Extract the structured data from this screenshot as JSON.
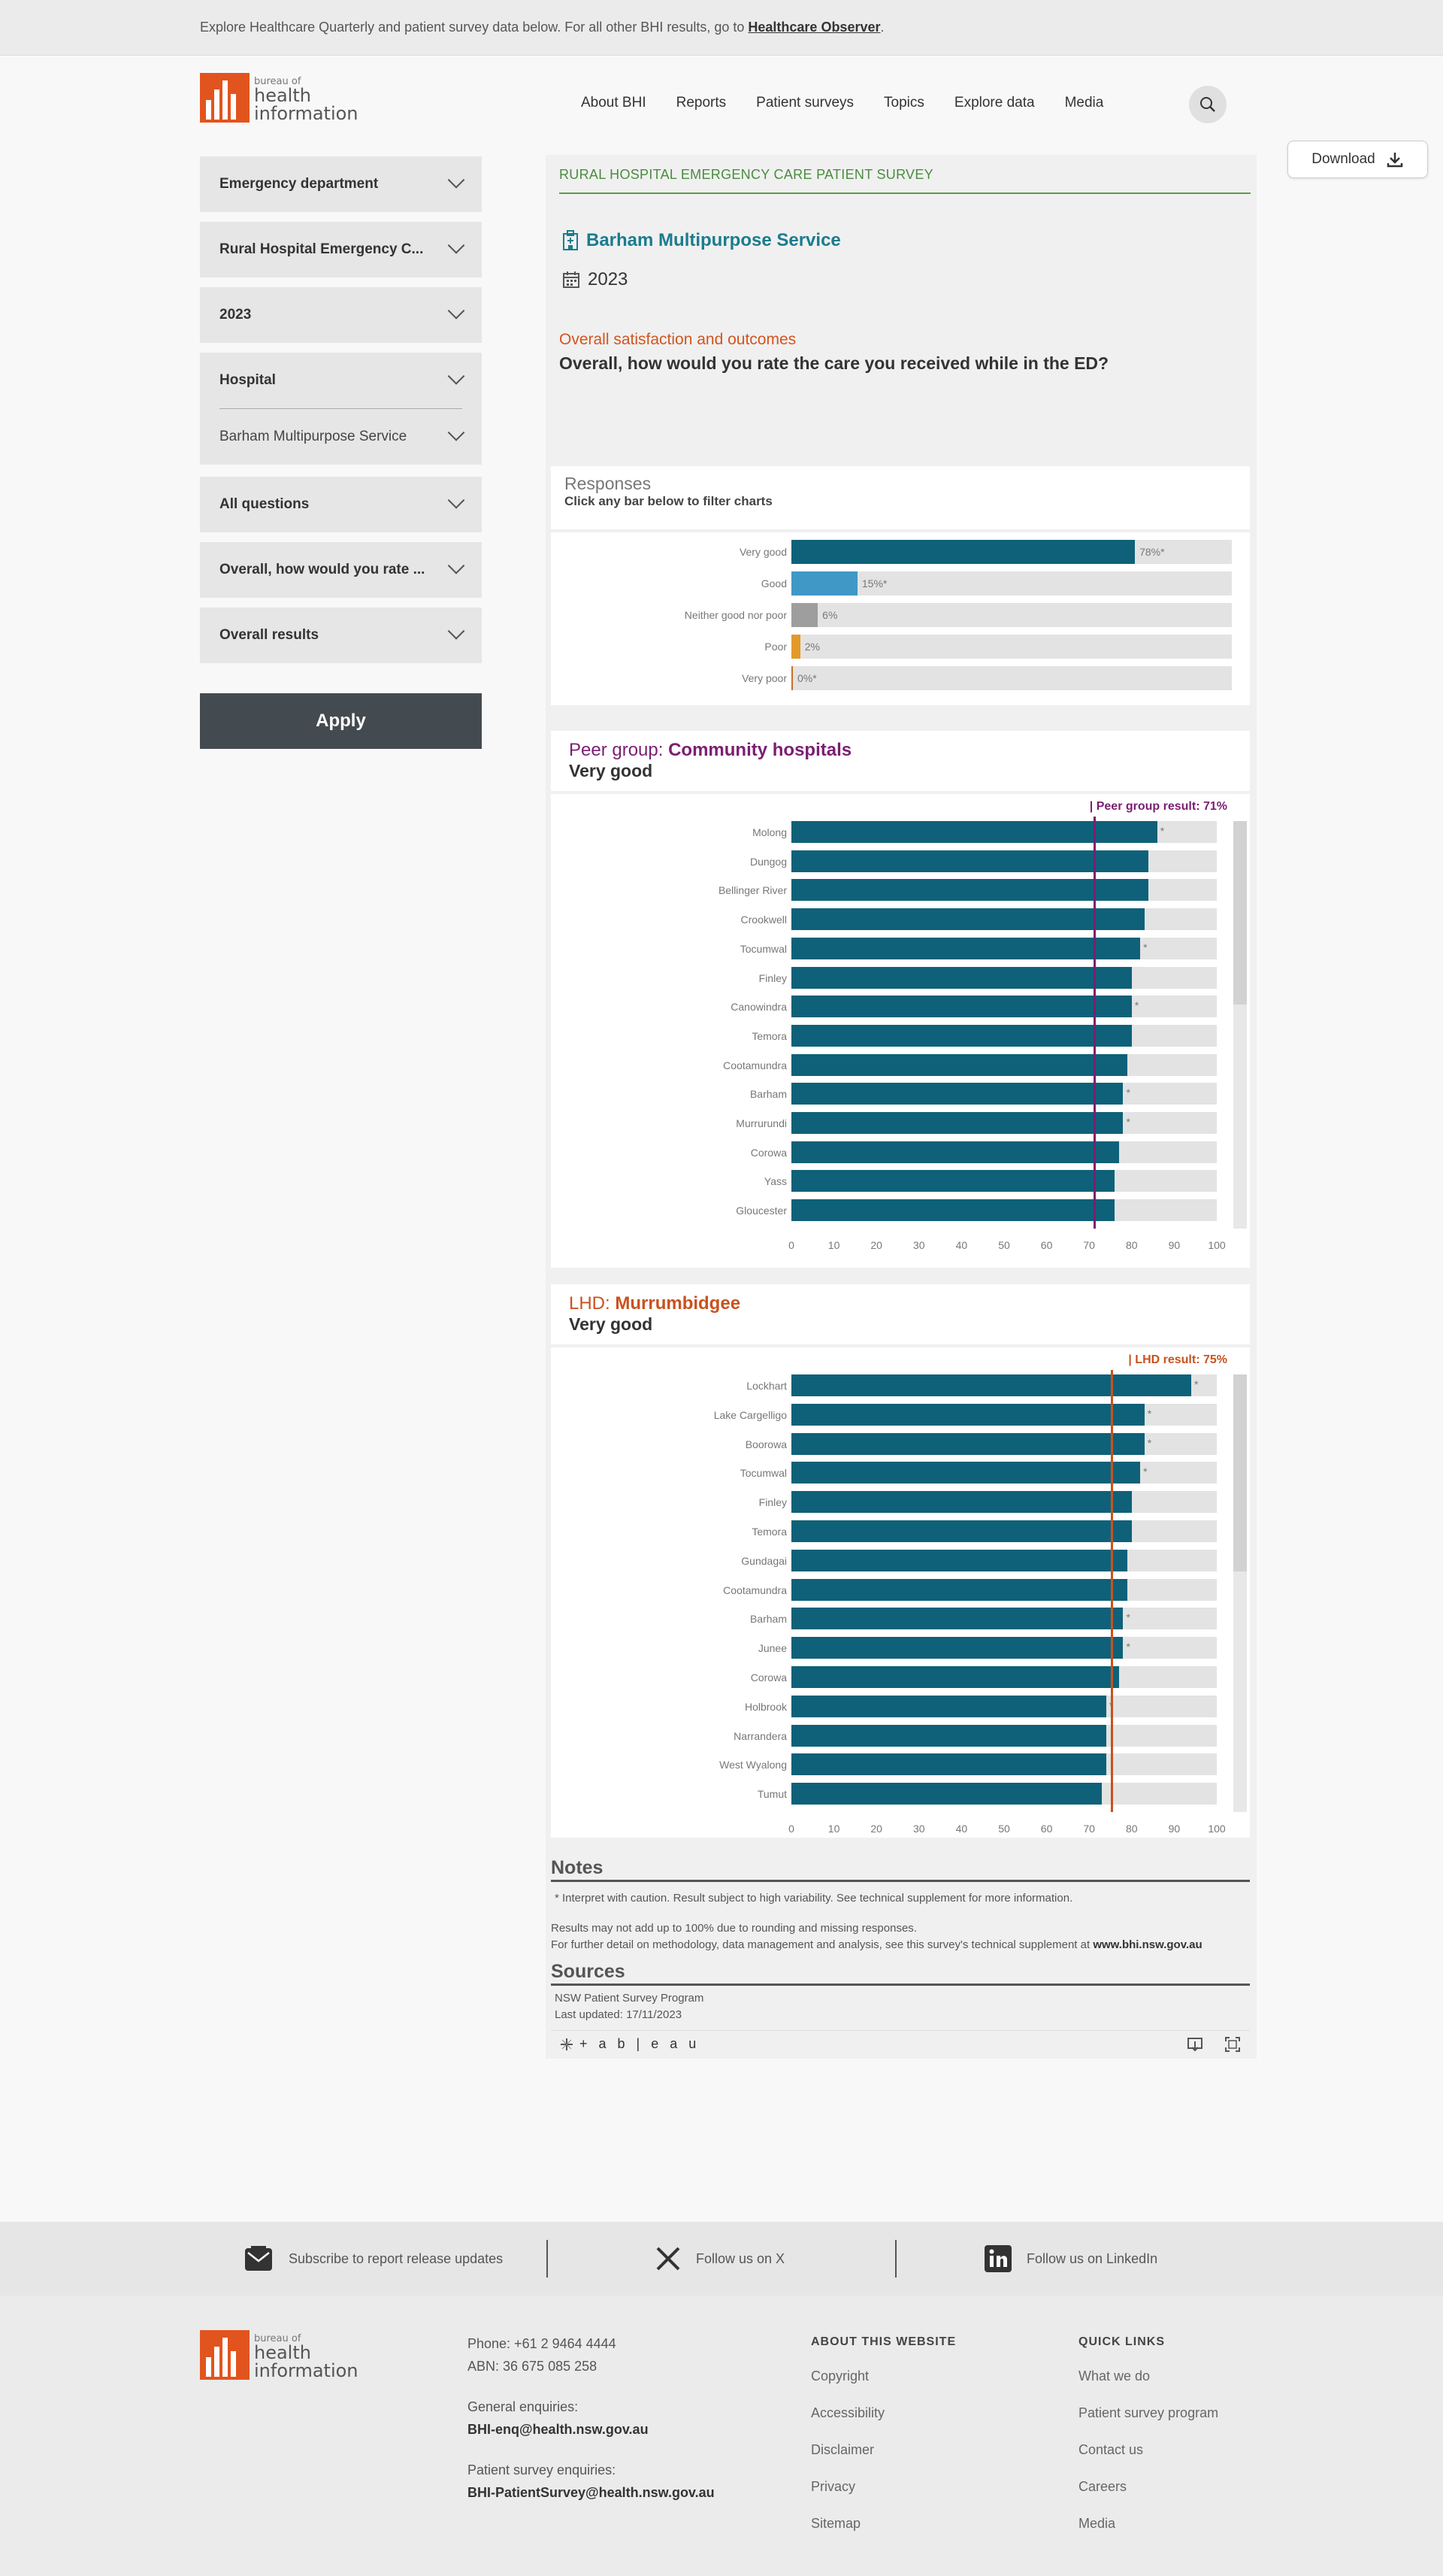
{
  "banner": {
    "text": "Explore Healthcare Quarterly and patient survey data below. For all other BHI results, go to",
    "link": "Healthcare Observer",
    "end": "."
  },
  "logo": {
    "line1": "bureau of",
    "line2": "health",
    "line3": "information"
  },
  "nav": [
    "About BHI",
    "Reports",
    "Patient surveys",
    "Topics",
    "Explore data",
    "Media"
  ],
  "download_label": "Download",
  "filters": {
    "f1": "Emergency department",
    "f2": "Rural Hospital Emergency C...",
    "f3": "2023",
    "f4": "Hospital",
    "f4b": "Barham Multipurpose Service",
    "f5": "All questions",
    "f6": "Overall, how would you rate ...",
    "f7": "Overall results",
    "apply": "Apply"
  },
  "survey": {
    "title": "RURAL HOSPITAL EMERGENCY CARE PATIENT SURVEY",
    "hospital": "Barham Multipurpose Service",
    "year": "2023",
    "category": "Overall satisfaction and outcomes",
    "question": "Overall, how would you rate the care you received while in the ED?"
  },
  "responses": {
    "title": "Responses",
    "sub": "Click any bar below to filter charts"
  },
  "peer": {
    "prefix": "Peer group:",
    "name": "Community hospitals",
    "measure": "Very good",
    "ref_label": "| Peer group result: 71%",
    "color": "#7a1f72"
  },
  "lhd": {
    "prefix": "LHD:",
    "name": "Murrumbidgee",
    "measure": "Very good",
    "ref_label": "| LHD result: 75%",
    "color": "#c9521e"
  },
  "chart_data": [
    {
      "type": "bar",
      "orientation": "horizontal",
      "title": "Responses",
      "categories": [
        "Very good",
        "Good",
        "Neither good nor poor",
        "Poor",
        "Very poor"
      ],
      "values": [
        78,
        15,
        6,
        2,
        0
      ],
      "labels": [
        "78%*",
        "15%*",
        "6%",
        "2%",
        "0%*"
      ],
      "colors": [
        "#0e6179",
        "#3f98c6",
        "#9e9e9e",
        "#e3992a",
        "#c7702d"
      ],
      "xlim": [
        0,
        100
      ]
    },
    {
      "type": "bar",
      "orientation": "horizontal",
      "title": "Peer group: Community hospitals — Very good",
      "categories": [
        "Molong",
        "Dungog",
        "Bellinger River",
        "Crookwell",
        "Tocumwal",
        "Finley",
        "Canowindra",
        "Temora",
        "Cootamundra",
        "Barham",
        "Murrurundi",
        "Corowa",
        "Yass",
        "Gloucester"
      ],
      "values": [
        86,
        84,
        84,
        83,
        82,
        80,
        80,
        80,
        79,
        78,
        78,
        77,
        76,
        76
      ],
      "caution": [
        true,
        false,
        false,
        false,
        true,
        false,
        true,
        false,
        false,
        true,
        true,
        false,
        false,
        false
      ],
      "reference": 71,
      "xlim": [
        0,
        100
      ],
      "xticks": [
        0,
        10,
        20,
        30,
        40,
        50,
        60,
        70,
        80,
        90,
        100
      ]
    },
    {
      "type": "bar",
      "orientation": "horizontal",
      "title": "LHD: Murrumbidgee — Very good",
      "categories": [
        "Lockhart",
        "Lake Cargelligo",
        "Boorowa",
        "Tocumwal",
        "Finley",
        "Temora",
        "Gundagai",
        "Cootamundra",
        "Barham",
        "Junee",
        "Corowa",
        "Holbrook",
        "Narrandera",
        "West Wyalong",
        "Tumut"
      ],
      "values": [
        94,
        83,
        83,
        82,
        80,
        80,
        79,
        79,
        78,
        78,
        77,
        74,
        74,
        74,
        73
      ],
      "caution": [
        true,
        true,
        true,
        true,
        false,
        false,
        false,
        false,
        true,
        true,
        false,
        true,
        false,
        false,
        false
      ],
      "reference": 75,
      "xlim": [
        0,
        100
      ],
      "xticks": [
        0,
        10,
        20,
        30,
        40,
        50,
        60,
        70,
        80,
        90,
        100
      ]
    }
  ],
  "notes": {
    "title": "Notes",
    "n1": "* Interpret with caution. Result subject to high variability. See technical supplement for more information.",
    "n2": "Results may not add up to 100% due to rounding and missing responses.",
    "n3": "For further detail on methodology, data management and analysis, see this survey's technical supplement at",
    "n3link": "www.bhi.nsw.gov.au",
    "sources_title": "Sources",
    "s1": "NSW Patient Survey Program",
    "s2": "Last updated: 17/11/2023"
  },
  "tableau_brand": "+ a b | e a u",
  "social": {
    "subscribe": "Subscribe to report release updates",
    "x": "Follow us on X",
    "linkedin": "Follow us on LinkedIn"
  },
  "footer": {
    "phone": "Phone: +61 2 9464 4444",
    "abn": "ABN: 36 675 085 258",
    "general_label": "General enquiries:",
    "general_email": "BHI-enq@health.nsw.gov.au",
    "survey_label": "Patient survey enquiries:",
    "survey_email": "BHI-PatientSurvey@health.nsw.gov.au",
    "about_title": "ABOUT THIS WEBSITE",
    "about_links": [
      "Copyright",
      "Accessibility",
      "Disclaimer",
      "Privacy",
      "Sitemap"
    ],
    "quick_title": "QUICK LINKS",
    "quick_links": [
      "What we do",
      "Patient survey program",
      "Contact us",
      "Careers",
      "Media"
    ]
  }
}
